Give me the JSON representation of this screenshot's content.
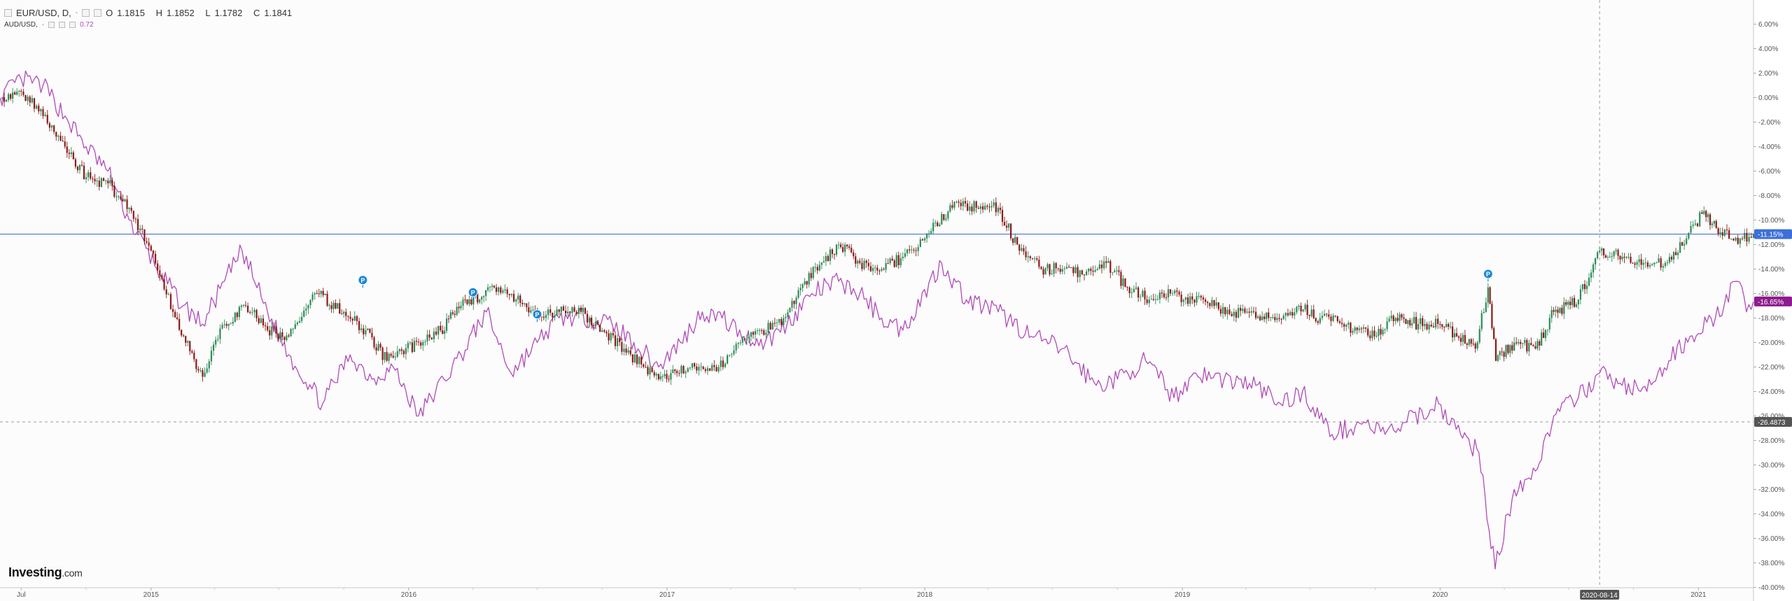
{
  "header": {
    "symbol": "EUR/USD, D,",
    "open_label": "O",
    "open": "1.1815",
    "high_label": "H",
    "high": "1.1852",
    "low_label": "L",
    "low": "1.1782",
    "close_label": "C",
    "close": "1.1841",
    "secondary_symbol": "AUD/USD,",
    "secondary_value": "0.72",
    "menu_glyph": "-"
  },
  "brand": {
    "name": "Investing",
    "suffix": ".com"
  },
  "colors": {
    "up_candle": "#2e8b57",
    "down_candle": "#8b1a1a",
    "comparison_line": "#b04bb8",
    "horizontal_line": "#5b7fd6",
    "eur_badge": "#3d6fd8",
    "aud_badge": "#8e1b8e",
    "crosshair_badge": "#555555",
    "event_marker": "#1e88d4"
  },
  "chart_data": {
    "type": "line",
    "title": "",
    "xlabel": "",
    "ylabel": "",
    "y_unit": "%",
    "ylim": [
      -41,
      7
    ],
    "x_ticks": [
      "Jul",
      "2015",
      "2016",
      "2017",
      "2018",
      "2019",
      "2020",
      "2020-08-14",
      "2021"
    ],
    "y_ticks": [
      "6.00%",
      "4.00%",
      "2.00%",
      "0.00%",
      "-2.00%",
      "-4.00%",
      "-6.00%",
      "-8.00%",
      "-10.00%",
      "-12.00%",
      "-14.00%",
      "-16.00%",
      "-18.00%",
      "-20.00%",
      "-22.00%",
      "-24.00%",
      "-26.00%",
      "-28.00%",
      "-30.00%",
      "-32.00%",
      "-34.00%",
      "-36.00%",
      "-38.00%",
      "-40.00%"
    ],
    "x_range": [
      "2014-06-01",
      "2021-03-20"
    ],
    "series": [
      {
        "name": "EUR/USD, D,",
        "style": "candlestick",
        "points": [
          [
            "2014-06-01",
            0.0
          ],
          [
            "2014-07-01",
            0.5
          ],
          [
            "2014-08-01",
            -1.5
          ],
          [
            "2014-09-01",
            -4.0
          ],
          [
            "2014-10-01",
            -6.5
          ],
          [
            "2014-11-01",
            -7.0
          ],
          [
            "2014-12-01",
            -9.0
          ],
          [
            "2015-01-01",
            -12.5
          ],
          [
            "2015-02-01",
            -17.5
          ],
          [
            "2015-03-15",
            -22.8
          ],
          [
            "2015-04-15",
            -18.5
          ],
          [
            "2015-05-15",
            -17.0
          ],
          [
            "2015-06-15",
            -19.0
          ],
          [
            "2015-07-15",
            -19.5
          ],
          [
            "2015-08-24",
            -16.0
          ],
          [
            "2015-10-01",
            -17.5
          ],
          [
            "2015-11-01",
            -19.0
          ],
          [
            "2015-12-01",
            -21.5
          ],
          [
            "2016-01-15",
            -20.0
          ],
          [
            "2016-02-15",
            -19.0
          ],
          [
            "2016-03-15",
            -17.0
          ],
          [
            "2016-05-01",
            -15.5
          ],
          [
            "2016-06-01",
            -16.5
          ],
          [
            "2016-07-01",
            -18.0
          ],
          [
            "2016-08-01",
            -17.5
          ],
          [
            "2016-09-01",
            -17.5
          ],
          [
            "2016-10-01",
            -19.0
          ],
          [
            "2016-11-01",
            -20.5
          ],
          [
            "2016-12-20",
            -23.0
          ],
          [
            "2017-01-15",
            -22.5
          ],
          [
            "2017-02-15",
            -22.0
          ],
          [
            "2017-03-15",
            -22.0
          ],
          [
            "2017-04-15",
            -20.0
          ],
          [
            "2017-05-15",
            -19.0
          ],
          [
            "2017-06-15",
            -18.0
          ],
          [
            "2017-07-15",
            -15.0
          ],
          [
            "2017-09-01",
            -12.0
          ],
          [
            "2017-10-01",
            -13.5
          ],
          [
            "2017-11-01",
            -14.0
          ],
          [
            "2017-12-01",
            -13.0
          ],
          [
            "2018-01-01",
            -11.5
          ],
          [
            "2018-02-15",
            -8.5
          ],
          [
            "2018-03-15",
            -9.0
          ],
          [
            "2018-04-15",
            -9.0
          ],
          [
            "2018-05-15",
            -12.5
          ],
          [
            "2018-06-15",
            -14.0
          ],
          [
            "2018-07-15",
            -14.0
          ],
          [
            "2018-08-15",
            -14.5
          ],
          [
            "2018-09-15",
            -13.5
          ],
          [
            "2018-10-15",
            -15.5
          ],
          [
            "2018-11-15",
            -16.5
          ],
          [
            "2018-12-15",
            -16.0
          ],
          [
            "2019-01-15",
            -16.5
          ],
          [
            "2019-02-15",
            -17.0
          ],
          [
            "2019-03-15",
            -17.5
          ],
          [
            "2019-04-15",
            -18.0
          ],
          [
            "2019-05-15",
            -18.0
          ],
          [
            "2019-06-15",
            -17.0
          ],
          [
            "2019-07-15",
            -18.0
          ],
          [
            "2019-08-15",
            -18.5
          ],
          [
            "2019-09-30",
            -19.5
          ],
          [
            "2019-10-30",
            -18.0
          ],
          [
            "2019-12-01",
            -18.5
          ],
          [
            "2020-01-01",
            -18.5
          ],
          [
            "2020-02-20",
            -20.5
          ],
          [
            "2020-03-09",
            -15.5
          ],
          [
            "2020-03-20",
            -21.5
          ],
          [
            "2020-04-15",
            -20.0
          ],
          [
            "2020-05-15",
            -20.5
          ],
          [
            "2020-06-10",
            -17.5
          ],
          [
            "2020-07-15",
            -16.5
          ],
          [
            "2020-08-14",
            -12.5
          ],
          [
            "2020-09-15",
            -13.0
          ],
          [
            "2020-10-15",
            -13.5
          ],
          [
            "2020-11-15",
            -13.5
          ],
          [
            "2020-12-15",
            -11.5
          ],
          [
            "2021-01-06",
            -9.5
          ],
          [
            "2021-02-01",
            -11.0
          ],
          [
            "2021-03-01",
            -11.5
          ],
          [
            "2021-03-20",
            -11.15
          ]
        ]
      },
      {
        "name": "AUD/USD,",
        "style": "line",
        "points": [
          [
            "2014-06-01",
            0.0
          ],
          [
            "2014-07-01",
            1.5
          ],
          [
            "2014-08-01",
            1.0
          ],
          [
            "2014-09-01",
            -1.5
          ],
          [
            "2014-10-01",
            -4.0
          ],
          [
            "2014-11-01",
            -6.0
          ],
          [
            "2014-12-01",
            -10.0
          ],
          [
            "2015-01-15",
            -14.5
          ],
          [
            "2015-02-15",
            -17.0
          ],
          [
            "2015-03-15",
            -18.5
          ],
          [
            "2015-04-15",
            -15.0
          ],
          [
            "2015-05-10",
            -12.5
          ],
          [
            "2015-06-15",
            -17.5
          ],
          [
            "2015-07-15",
            -21.0
          ],
          [
            "2015-09-01",
            -25.0
          ],
          [
            "2015-10-10",
            -21.0
          ],
          [
            "2015-11-10",
            -23.0
          ],
          [
            "2015-12-10",
            -22.0
          ],
          [
            "2016-01-15",
            -26.0
          ],
          [
            "2016-02-20",
            -23.0
          ],
          [
            "2016-03-15",
            -21.0
          ],
          [
            "2016-04-20",
            -17.5
          ],
          [
            "2016-05-25",
            -22.5
          ],
          [
            "2016-07-01",
            -20.0
          ],
          [
            "2016-08-01",
            -18.0
          ],
          [
            "2016-09-15",
            -18.0
          ],
          [
            "2016-10-15",
            -18.5
          ],
          [
            "2016-11-15",
            -20.0
          ],
          [
            "2016-12-20",
            -22.0
          ],
          [
            "2017-01-20",
            -20.0
          ],
          [
            "2017-02-20",
            -17.5
          ],
          [
            "2017-03-20",
            -18.0
          ],
          [
            "2017-04-20",
            -19.5
          ],
          [
            "2017-05-20",
            -20.0
          ],
          [
            "2017-06-20",
            -18.5
          ],
          [
            "2017-07-25",
            -16.0
          ],
          [
            "2017-09-01",
            -15.0
          ],
          [
            "2017-10-01",
            -16.0
          ],
          [
            "2017-11-01",
            -18.0
          ],
          [
            "2017-12-01",
            -19.0
          ],
          [
            "2018-01-25",
            -13.5
          ],
          [
            "2018-03-01",
            -16.5
          ],
          [
            "2018-04-15",
            -17.5
          ],
          [
            "2018-06-01",
            -19.5
          ],
          [
            "2018-07-15",
            -20.5
          ],
          [
            "2018-09-01",
            -23.5
          ],
          [
            "2018-10-01",
            -23.0
          ],
          [
            "2018-11-10",
            -21.5
          ],
          [
            "2018-12-20",
            -24.5
          ],
          [
            "2019-01-20",
            -22.5
          ],
          [
            "2019-03-01",
            -23.0
          ],
          [
            "2019-04-15",
            -23.5
          ],
          [
            "2019-05-20",
            -25.0
          ],
          [
            "2019-06-20",
            -24.0
          ],
          [
            "2019-08-01",
            -27.5
          ],
          [
            "2019-09-15",
            -26.5
          ],
          [
            "2019-10-15",
            -27.5
          ],
          [
            "2019-11-15",
            -26.5
          ],
          [
            "2019-12-30",
            -25.0
          ],
          [
            "2020-01-30",
            -27.5
          ],
          [
            "2020-02-25",
            -29.0
          ],
          [
            "2020-03-19",
            -38.5
          ],
          [
            "2020-04-15",
            -32.0
          ],
          [
            "2020-05-15",
            -30.5
          ],
          [
            "2020-06-10",
            -26.0
          ],
          [
            "2020-07-15",
            -24.5
          ],
          [
            "2020-08-14",
            -22.5
          ],
          [
            "2020-09-15",
            -23.5
          ],
          [
            "2020-10-20",
            -24.0
          ],
          [
            "2020-11-20",
            -21.5
          ],
          [
            "2020-12-20",
            -19.5
          ],
          [
            "2021-01-25",
            -18.0
          ],
          [
            "2021-02-25",
            -15.0
          ],
          [
            "2021-03-10",
            -17.5
          ],
          [
            "2021-03-20",
            -16.65
          ]
        ]
      }
    ],
    "price_labels": {
      "eur_usd": "-11.15%",
      "aud_usd": "-16.65%",
      "crosshair_y": "-26.4873",
      "crosshair_x": "2020-08-14"
    },
    "horizontal_line_value": -11.15,
    "crosshair": {
      "date": "2020-08-14",
      "value": -26.4873
    },
    "event_markers": [
      {
        "label": "P",
        "date": "2015-10-28",
        "value": -14.9
      },
      {
        "label": "P",
        "date": "2016-04-01",
        "value": -15.9
      },
      {
        "label": "P",
        "date": "2016-07-01",
        "value": -17.7
      },
      {
        "label": "P",
        "date": "2020-03-09",
        "value": -14.4
      }
    ],
    "grid": false,
    "legend_position": "top-left"
  }
}
